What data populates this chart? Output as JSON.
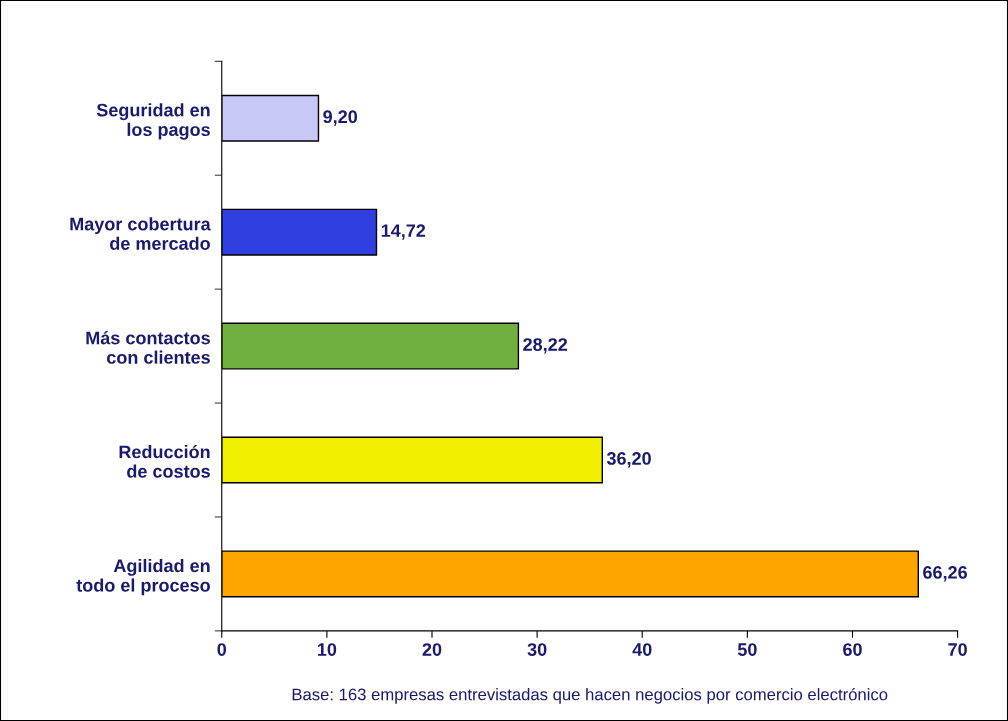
{
  "chart_data": {
    "type": "bar",
    "orientation": "horizontal",
    "categories": [
      "Seguridad en\nlos pagos",
      "Mayor cobertura\nde mercado",
      "Más contactos\ncon clientes",
      "Reducción\nde costos",
      "Agilidad en\ntodo el proceso"
    ],
    "values": [
      9.2,
      14.72,
      28.22,
      36.2,
      66.26
    ],
    "value_labels": [
      "9,20",
      "14,72",
      "28,22",
      "36,20",
      "66,26"
    ],
    "colors": [
      "#c8c8f8",
      "#2f3fe0",
      "#6fb040",
      "#f0f000",
      "#ffa500"
    ],
    "xlim": [
      0,
      70
    ],
    "xticks": [
      0,
      10,
      20,
      30,
      40,
      50,
      60,
      70
    ],
    "grid": false,
    "legend": false,
    "annotations": [
      "Base: 163 empresas entrevistadas que hacen negocios por comercio electrónico"
    ]
  }
}
